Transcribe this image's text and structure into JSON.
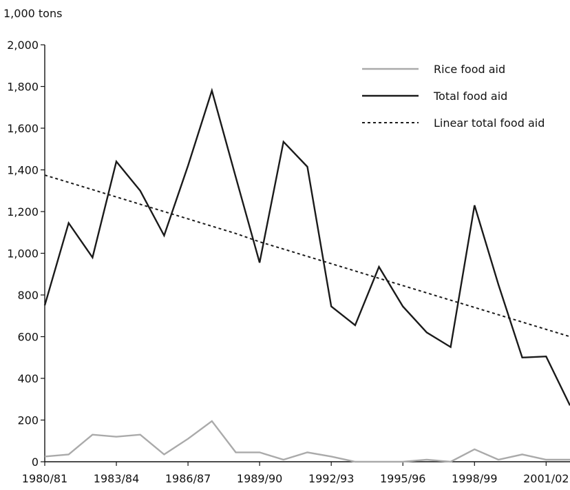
{
  "chart_data": {
    "type": "line",
    "unit_label": "1,000 tons",
    "ylim": [
      0,
      2000
    ],
    "y_ticks": [
      "0",
      "200",
      "400",
      "600",
      "800",
      "1,000",
      "1,200",
      "1,400",
      "1,600",
      "1,800",
      "2,000"
    ],
    "y_tick_values": [
      0,
      200,
      400,
      600,
      800,
      1000,
      1200,
      1400,
      1600,
      1800,
      2000
    ],
    "categories": [
      "1980/81",
      "1981/82",
      "1982/83",
      "1983/84",
      "1984/85",
      "1985/86",
      "1986/87",
      "1987/88",
      "1988/89",
      "1989/90",
      "1990/91",
      "1991/92",
      "1992/93",
      "1993/94",
      "1994/95",
      "1995/96",
      "1996/97",
      "1997/98",
      "1998/99",
      "1999/00",
      "2000/01",
      "2001/02",
      "2002/03"
    ],
    "x_tick_labels": [
      "1980/81",
      "1983/84",
      "1986/87",
      "1989/90",
      "1992/93",
      "1995/96",
      "1998/99",
      "2001/02"
    ],
    "x_tick_indices": [
      0,
      3,
      6,
      9,
      12,
      15,
      18,
      21
    ],
    "grid": false,
    "legend_position": "top-right",
    "series": [
      {
        "name": "Rice food aid",
        "color": "#aaaaaa",
        "dash": "solid",
        "values": [
          25,
          35,
          130,
          120,
          130,
          35,
          110,
          195,
          45,
          45,
          10,
          45,
          25,
          0,
          0,
          0,
          10,
          0,
          60,
          10,
          35,
          10,
          10
        ]
      },
      {
        "name": "Total food aid",
        "color": "#1a1a1a",
        "dash": "solid",
        "values": [
          750,
          1145,
          980,
          1440,
          1300,
          1085,
          1420,
          1780,
          1365,
          955,
          1535,
          1415,
          745,
          655,
          935,
          745,
          620,
          550,
          1230,
          850,
          500,
          505,
          270
        ]
      },
      {
        "name": "Linear total food aid",
        "color": "#1a1a1a",
        "dash": "dotted",
        "values": [
          1375,
          1340,
          1305,
          1270,
          1235,
          1200,
          1165,
          1130,
          1095,
          1055,
          1020,
          985,
          950,
          915,
          880,
          845,
          810,
          775,
          740,
          705,
          670,
          635,
          600
        ]
      }
    ]
  }
}
